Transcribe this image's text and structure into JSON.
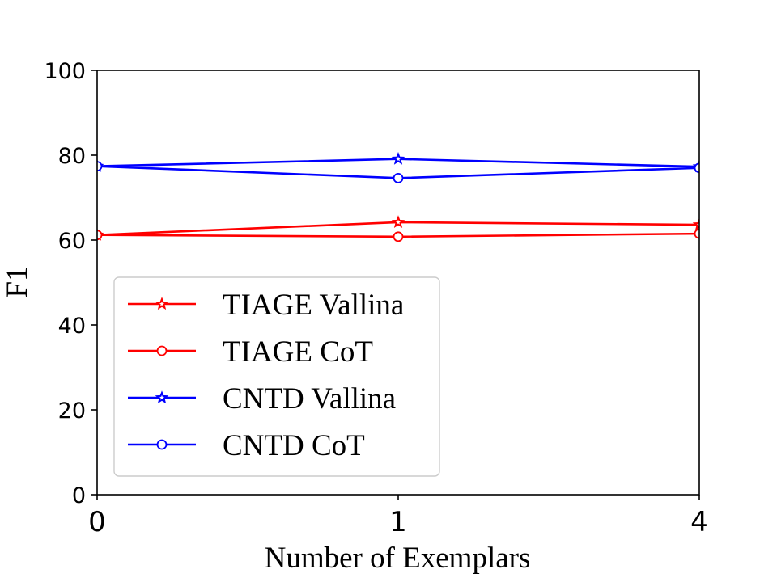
{
  "chart_data": {
    "type": "line",
    "title": "",
    "xlabel": "Number of Exemplars",
    "ylabel": "F1",
    "categories": [
      "0",
      "1",
      "4"
    ],
    "ylim": [
      0,
      100
    ],
    "yticks": [
      0,
      20,
      40,
      60,
      80,
      100
    ],
    "grid": false,
    "legend_position": "lower-left",
    "series": [
      {
        "name": "TIAGE Vallina",
        "color": "#ff0000",
        "marker": "star",
        "values": [
          61.2,
          64.2,
          63.6
        ]
      },
      {
        "name": "TIAGE CoT",
        "color": "#ff0000",
        "marker": "circle",
        "values": [
          61.2,
          60.8,
          61.5
        ]
      },
      {
        "name": "CNTD Vallina",
        "color": "#0000ff",
        "marker": "star",
        "values": [
          77.4,
          79.1,
          77.3
        ]
      },
      {
        "name": "CNTD CoT",
        "color": "#0000ff",
        "marker": "circle",
        "values": [
          77.4,
          74.6,
          77.0
        ]
      }
    ]
  }
}
